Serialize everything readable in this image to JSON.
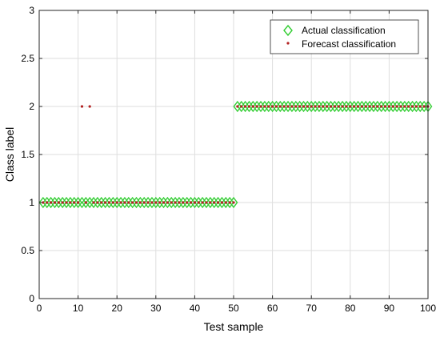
{
  "chart_data": {
    "type": "scatter",
    "xlabel": "Test sample",
    "ylabel": "Class label",
    "xlim": [
      0,
      100
    ],
    "ylim": [
      0,
      3
    ],
    "xticks": [
      "0",
      "10",
      "20",
      "30",
      "40",
      "50",
      "60",
      "70",
      "80",
      "90",
      "100"
    ],
    "yticks": [
      "0",
      "0.5",
      "1",
      "1.5",
      "2",
      "2.5",
      "3"
    ],
    "grid": true,
    "legend_position": "top-right",
    "series": [
      {
        "name": "Actual classification",
        "marker": "diamond",
        "color": "#32cd32",
        "x": [
          1,
          2,
          3,
          4,
          5,
          6,
          7,
          8,
          9,
          10,
          11,
          12,
          13,
          14,
          15,
          16,
          17,
          18,
          19,
          20,
          21,
          22,
          23,
          24,
          25,
          26,
          27,
          28,
          29,
          30,
          31,
          32,
          33,
          34,
          35,
          36,
          37,
          38,
          39,
          40,
          41,
          42,
          43,
          44,
          45,
          46,
          47,
          48,
          49,
          50,
          51,
          52,
          53,
          54,
          55,
          56,
          57,
          58,
          59,
          60,
          61,
          62,
          63,
          64,
          65,
          66,
          67,
          68,
          69,
          70,
          71,
          72,
          73,
          74,
          75,
          76,
          77,
          78,
          79,
          80,
          81,
          82,
          83,
          84,
          85,
          86,
          87,
          88,
          89,
          90,
          91,
          92,
          93,
          94,
          95,
          96,
          97,
          98,
          99,
          100
        ],
        "y": [
          1,
          1,
          1,
          1,
          1,
          1,
          1,
          1,
          1,
          1,
          1,
          1,
          1,
          1,
          1,
          1,
          1,
          1,
          1,
          1,
          1,
          1,
          1,
          1,
          1,
          1,
          1,
          1,
          1,
          1,
          1,
          1,
          1,
          1,
          1,
          1,
          1,
          1,
          1,
          1,
          1,
          1,
          1,
          1,
          1,
          1,
          1,
          1,
          1,
          1,
          2,
          2,
          2,
          2,
          2,
          2,
          2,
          2,
          2,
          2,
          2,
          2,
          2,
          2,
          2,
          2,
          2,
          2,
          2,
          2,
          2,
          2,
          2,
          2,
          2,
          2,
          2,
          2,
          2,
          2,
          2,
          2,
          2,
          2,
          2,
          2,
          2,
          2,
          2,
          2,
          2,
          2,
          2,
          2,
          2,
          2,
          2,
          2,
          2,
          2
        ]
      },
      {
        "name": "Forecast classification",
        "marker": "dot",
        "color": "#b22222",
        "x": [
          1,
          2,
          3,
          4,
          5,
          6,
          7,
          8,
          9,
          10,
          11,
          12,
          13,
          14,
          15,
          16,
          17,
          18,
          19,
          20,
          21,
          22,
          23,
          24,
          25,
          26,
          27,
          28,
          29,
          30,
          31,
          32,
          33,
          34,
          35,
          36,
          37,
          38,
          39,
          40,
          41,
          42,
          43,
          44,
          45,
          46,
          47,
          48,
          49,
          50,
          51,
          52,
          53,
          54,
          55,
          56,
          57,
          58,
          59,
          60,
          61,
          62,
          63,
          64,
          65,
          66,
          67,
          68,
          69,
          70,
          71,
          72,
          73,
          74,
          75,
          76,
          77,
          78,
          79,
          80,
          81,
          82,
          83,
          84,
          85,
          86,
          87,
          88,
          89,
          90,
          91,
          92,
          93,
          94,
          95,
          96,
          97,
          98,
          99,
          100
        ],
        "y": [
          1,
          1,
          1,
          1,
          1,
          1,
          1,
          1,
          1,
          1,
          2,
          1,
          2,
          1,
          1,
          1,
          1,
          1,
          1,
          1,
          1,
          1,
          1,
          1,
          1,
          1,
          1,
          1,
          1,
          1,
          1,
          1,
          1,
          1,
          1,
          1,
          1,
          1,
          1,
          1,
          1,
          1,
          1,
          1,
          1,
          1,
          1,
          1,
          1,
          1,
          2,
          2,
          2,
          2,
          2,
          2,
          2,
          2,
          2,
          2,
          2,
          2,
          2,
          2,
          2,
          2,
          2,
          2,
          2,
          2,
          2,
          2,
          2,
          2,
          2,
          2,
          2,
          2,
          2,
          2,
          2,
          2,
          2,
          2,
          2,
          2,
          2,
          2,
          2,
          2,
          2,
          2,
          2,
          2,
          2,
          2,
          2,
          2,
          2,
          2
        ]
      }
    ]
  }
}
